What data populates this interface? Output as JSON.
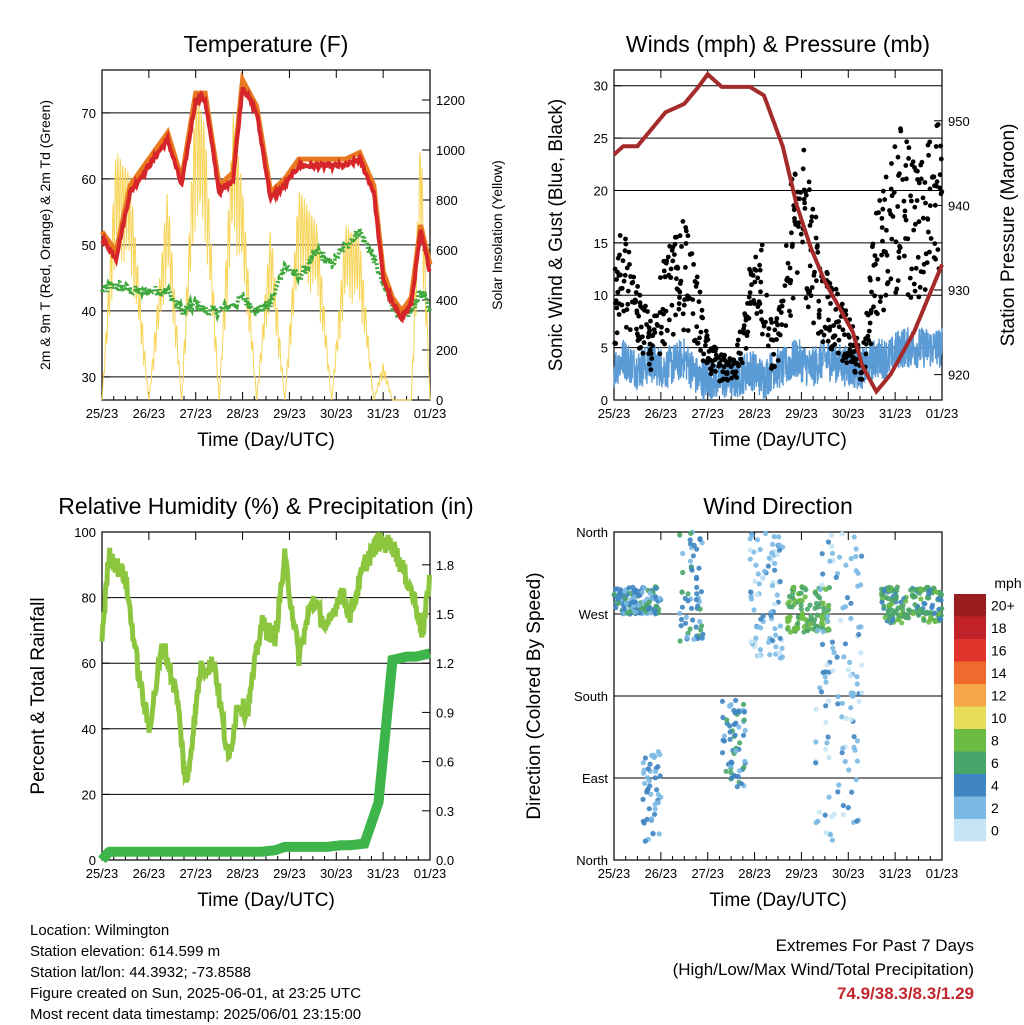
{
  "colors": {
    "temp2m": "#e8791e",
    "temp9m": "#d7262a",
    "dewpoint": "#3fa83c",
    "solar": "#f7d55a",
    "pressure": "#a52a2a",
    "wind": "#5b9bd5",
    "gust": "#000000",
    "rh": "#8cc63f",
    "precip": "#3db54a",
    "extremes": "#c1272d"
  },
  "xticks": [
    "25/23",
    "26/23",
    "27/23",
    "28/23",
    "29/23",
    "30/23",
    "31/23",
    "01/23"
  ],
  "xlabel": "Time (Day/UTC)",
  "temperature": {
    "title": "Temperature (F)",
    "ylabel_left": "2m & 9m T (Red, Orange) & 2m Td (Green)",
    "ylabel_right": "Solar Insolation (Yellow)",
    "ylim": [
      26.5,
      76.5
    ],
    "yticks": [
      "30",
      "40",
      "50",
      "60",
      "70"
    ],
    "yticks_right": [
      "0",
      "200",
      "400",
      "600",
      "800",
      "1000",
      "1200"
    ],
    "ylim_right": [
      0,
      1320
    ]
  },
  "winds": {
    "title": "Winds (mph) & Pressure (mb)",
    "ylabel_left": "Sonic Wind & Gust (Blue, Black)",
    "ylabel_right": "Station Pressure (Maroon)",
    "ylim": [
      0,
      31.5
    ],
    "yticks": [
      "0",
      "5",
      "10",
      "15",
      "20",
      "25",
      "30"
    ],
    "yticks_right": [
      "920",
      "930",
      "940",
      "950"
    ],
    "ylim_right": [
      917,
      956
    ]
  },
  "humidity": {
    "title": "Relative Humidity (%) & Precipitation (in)",
    "ylabel_left": "Percent & Total Rainfall",
    "ylim": [
      0,
      100
    ],
    "yticks": [
      "0",
      "20",
      "40",
      "60",
      "80",
      "100"
    ],
    "yticks_right": [
      "0.0",
      "0.3",
      "0.6",
      "0.9",
      "1.2",
      "1.5",
      "1.8"
    ],
    "ylim_right": [
      0,
      2
    ]
  },
  "direction": {
    "title": "Wind Direction",
    "ylabel_left": "Direction (Colored By Speed)",
    "yticks": [
      "North",
      "East",
      "South",
      "West",
      "North"
    ],
    "legend_title": "mph",
    "legend_labels": [
      "0",
      "2",
      "4",
      "6",
      "8",
      "10",
      "12",
      "14",
      "16",
      "18",
      "20+"
    ],
    "legend_colors": [
      "#c6e4f5",
      "#7ab9e4",
      "#3e85c2",
      "#4aa56a",
      "#6bbb45",
      "#e6de5a",
      "#f7a64a",
      "#ef6a2c",
      "#e0342d",
      "#c1222a",
      "#991d1f"
    ]
  },
  "info": {
    "location": "Location: Wilmington",
    "elevation": "Station elevation: 614.599 m",
    "latlon": "Station lat/lon: 44.3932; -73.8588",
    "created": "Figure created on Sun, 2025-06-01, at 23:25 UTC",
    "recent": "Most recent data timestamp: 2025/06/01 23:15:00"
  },
  "extremes": {
    "line1": "Extremes For Past 7 Days",
    "line2": "(High/Low/Max Wind/Total Precipitation)",
    "values": "74.9/38.3/8.3/1.29"
  },
  "chart_data": [
    {
      "type": "line",
      "title": "Temperature (F)",
      "x": [
        0,
        0.3,
        0.6,
        1.0,
        1.4,
        1.7,
        2.0,
        2.2,
        2.5,
        2.8,
        3.0,
        3.3,
        3.6,
        3.9,
        4.2,
        4.6,
        4.9,
        5.2,
        5.5,
        5.8,
        6.0,
        6.2,
        6.4,
        6.6,
        6.8,
        7.0
      ],
      "series": [
        {
          "name": "2m & 9m T (Red, Orange)",
          "values": [
            51,
            48,
            58,
            62,
            66,
            59,
            72,
            72,
            58,
            60,
            74,
            70,
            57,
            59,
            62,
            62,
            62,
            62,
            63,
            58,
            45,
            41,
            39,
            41,
            52,
            46
          ]
        },
        {
          "name": "2m Td (Green)",
          "values": [
            43,
            44,
            43,
            43,
            43,
            40,
            41,
            40,
            40,
            41,
            42,
            40,
            41,
            47,
            45,
            49,
            47,
            50,
            52,
            48,
            44,
            41,
            39,
            40,
            43,
            40
          ]
        },
        {
          "name": "Solar Insolation (Yellow)",
          "values": [
            0,
            1000,
            900,
            0,
            850,
            0,
            1250,
            1100,
            0,
            1150,
            850,
            0,
            700,
            0,
            850,
            700,
            0,
            700,
            650,
            0,
            150,
            0,
            0,
            0,
            1100,
            0
          ]
        }
      ],
      "xlabel": "Time (Day/UTC)",
      "ylim": [
        26.5,
        76.5
      ],
      "ylim_right": [
        0,
        1320
      ]
    },
    {
      "type": "line",
      "title": "Winds (mph) & Pressure (mb)",
      "x": [
        0,
        0.2,
        0.5,
        0.8,
        1.1,
        1.5,
        1.8,
        2.0,
        2.3,
        2.6,
        2.9,
        3.2,
        3.4,
        3.6,
        3.9,
        4.2,
        4.5,
        4.8,
        5.1,
        5.3,
        5.6,
        5.9,
        6.1,
        6.4,
        6.7,
        7.0
      ],
      "series": [
        {
          "name": "Station Pressure (Maroon)",
          "values": [
            946,
            947,
            947,
            949,
            951,
            952,
            954,
            955.5,
            954,
            954,
            954,
            953,
            950,
            947,
            940,
            935,
            931,
            928,
            925,
            921,
            918,
            920,
            922,
            925,
            929,
            933
          ]
        },
        {
          "name": "Sonic Wind (Blue)",
          "values": [
            3,
            4,
            3,
            3.5,
            3,
            4,
            2,
            2,
            2,
            2,
            3,
            2,
            3,
            3,
            4,
            3,
            4,
            3.5,
            3,
            3,
            4,
            4,
            5,
            5,
            5,
            5
          ]
        },
        {
          "name": "Gust (Black)",
          "values": [
            9,
            12,
            8,
            5,
            10,
            12,
            8,
            4,
            3,
            3,
            9,
            11,
            4,
            8,
            19,
            14,
            9,
            7,
            5,
            3,
            13,
            16,
            18,
            16,
            17,
            19
          ]
        }
      ],
      "xlabel": "Time (Day/UTC)",
      "ylim": [
        0,
        31.5
      ],
      "ylim_right": [
        917,
        956
      ]
    },
    {
      "type": "line",
      "title": "Relative Humidity (%) & Precipitation (in)",
      "x": [
        0,
        0.15,
        0.5,
        0.8,
        1.0,
        1.3,
        1.6,
        1.8,
        2.1,
        2.4,
        2.7,
        2.9,
        3.1,
        3.4,
        3.7,
        3.9,
        4.2,
        4.5,
        4.8,
        5.1,
        5.3,
        5.6,
        5.9,
        6.2,
        6.5,
        6.7,
        6.85,
        7.0
      ],
      "series": [
        {
          "name": "Relative Humidity",
          "values": [
            68,
            93,
            86,
            55,
            40,
            66,
            50,
            22,
            58,
            60,
            30,
            48,
            45,
            72,
            68,
            92,
            62,
            80,
            70,
            82,
            75,
            90,
            97,
            96,
            86,
            78,
            68,
            88
          ]
        },
        {
          "name": "Total Precipitation",
          "values": [
            0.0,
            0.05,
            0.05,
            0.05,
            0.05,
            0.05,
            0.05,
            0.05,
            0.05,
            0.05,
            0.05,
            0.05,
            0.05,
            0.05,
            0.06,
            0.08,
            0.08,
            0.08,
            0.08,
            0.09,
            0.09,
            0.1,
            0.35,
            1.22,
            1.24,
            1.24,
            1.25,
            1.26
          ]
        }
      ],
      "xlabel": "Time (Day/UTC)",
      "ylim": [
        0,
        100
      ],
      "ylim_right": [
        0,
        2
      ]
    },
    {
      "type": "scatter",
      "title": "Wind Direction",
      "clusters": [
        {
          "x": [
            0.0,
            1.0
          ],
          "dir": [
            270,
            300
          ],
          "speed": 4
        },
        {
          "x": [
            0.6,
            1.0
          ],
          "dir": [
            20,
            120
          ],
          "speed": 3
        },
        {
          "x": [
            1.4,
            1.9
          ],
          "dir": [
            240,
            360
          ],
          "speed": 4
        },
        {
          "x": [
            2.3,
            2.8
          ],
          "dir": [
            80,
            180
          ],
          "speed": 4
        },
        {
          "x": [
            2.9,
            3.6
          ],
          "dir": [
            220,
            360
          ],
          "speed": 2
        },
        {
          "x": [
            3.7,
            4.6
          ],
          "dir": [
            250,
            300
          ],
          "speed": 7
        },
        {
          "x": [
            4.3,
            5.3
          ],
          "dir": [
            20,
            360
          ],
          "speed": 2
        },
        {
          "x": [
            5.7,
            7.0
          ],
          "dir": [
            260,
            300
          ],
          "speed": 6
        }
      ],
      "xlabel": "Time (Day/UTC)"
    }
  ]
}
